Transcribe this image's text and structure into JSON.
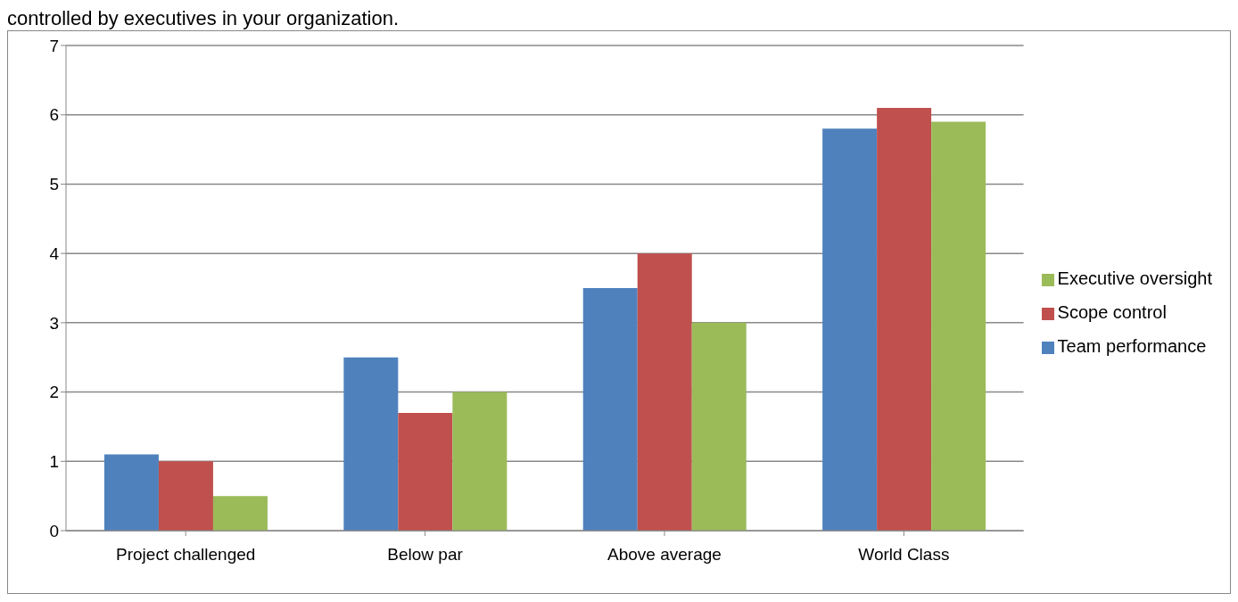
{
  "chart_data": {
    "type": "bar",
    "title": "controlled by executives in your organization.",
    "categories": [
      "Project challenged",
      "Below par",
      "Above average",
      "World Class"
    ],
    "series": [
      {
        "name": "Team performance",
        "color": "#4f81bd",
        "values": [
          1.1,
          2.5,
          3.5,
          5.8
        ]
      },
      {
        "name": "Scope control",
        "color": "#c0504d",
        "values": [
          1.0,
          1.7,
          4.0,
          6.1
        ]
      },
      {
        "name": "Executive oversight",
        "color": "#9bbb59",
        "values": [
          0.5,
          2.0,
          3.0,
          5.9
        ]
      }
    ],
    "ylim": [
      0,
      7
    ],
    "yticks": [
      0,
      1,
      2,
      3,
      4,
      5,
      6,
      7
    ],
    "grid": "y",
    "legend": "right"
  }
}
